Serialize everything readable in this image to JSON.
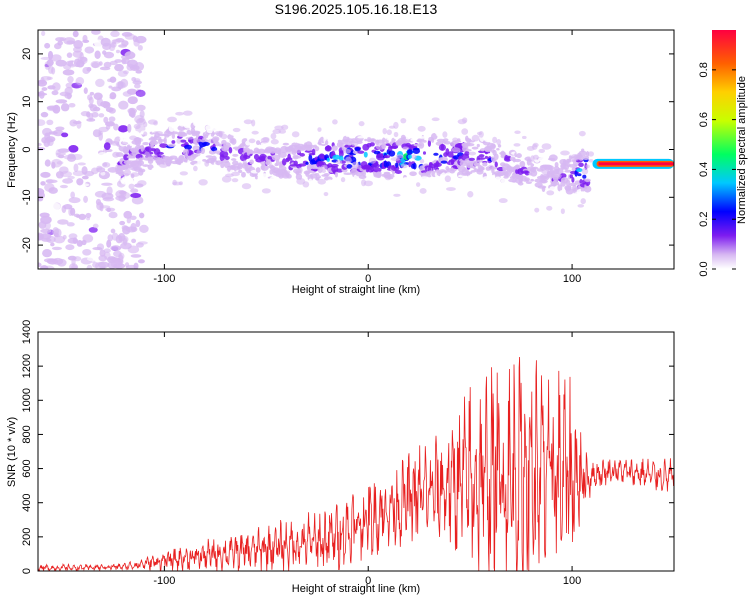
{
  "chart_data": [
    {
      "type": "heatmap",
      "title": "S196.2025.105.16.18.E13",
      "xlabel": "Height of straight line (km)",
      "ylabel": "Frequency (Hz)",
      "xlim": [
        -162,
        150
      ],
      "ylim": [
        -25,
        25
      ],
      "xticks": [
        -100,
        0,
        100
      ],
      "yticks": [
        -20,
        -10,
        0,
        10,
        20
      ],
      "grid": false,
      "colorbar": {
        "label": "Normalized spectral amplitude",
        "range": [
          0.0,
          0.96
        ],
        "ticks": [
          0.0,
          0.2,
          0.4,
          0.6,
          0.8
        ],
        "colors": [
          "#ffffff",
          "#d7b8f2",
          "#7d1cf0",
          "#0000ff",
          "#00c8ff",
          "#00ff60",
          "#c8ff00",
          "#ffd000",
          "#ff6000",
          "#ff0040"
        ]
      },
      "ridge": {
        "note_x": [
          -120,
          -100,
          -80,
          -60,
          -40,
          -20,
          0,
          20,
          40,
          60,
          80,
          100,
          115,
          150
        ],
        "freq": [
          -2.5,
          0.5,
          1.0,
          -2.0,
          -2.5,
          -2.0,
          -1.5,
          -2.0,
          -1.0,
          -2.0,
          -5.0,
          -5.5,
          -3.0,
          -3.0
        ],
        "amplitude": [
          0.2,
          0.25,
          0.25,
          0.2,
          0.2,
          0.35,
          0.4,
          0.45,
          0.3,
          0.25,
          0.15,
          0.2,
          0.9,
          0.9
        ]
      }
    },
    {
      "type": "line",
      "xlabel": "Height of straight line (km)",
      "ylabel": "SNR (10 * v/v)",
      "xlim": [
        -162,
        150
      ],
      "ylim": [
        0,
        1400
      ],
      "xticks": [
        -100,
        0,
        100
      ],
      "yticks": [
        0,
        200,
        400,
        600,
        800,
        1000,
        1200,
        1400
      ],
      "grid": false,
      "color": "#e82020",
      "envelope": {
        "x": [
          -162,
          -140,
          -120,
          -100,
          -80,
          -60,
          -40,
          -20,
          0,
          20,
          40,
          50,
          60,
          70,
          78,
          90,
          100,
          105,
          110,
          120,
          135,
          150
        ],
        "mean": [
          18,
          20,
          25,
          60,
          90,
          115,
          150,
          180,
          300,
          420,
          500,
          520,
          540,
          560,
          570,
          560,
          560,
          540,
          560,
          590,
          570,
          550
        ],
        "amp": [
          15,
          15,
          15,
          45,
          70,
          90,
          120,
          160,
          180,
          210,
          300,
          450,
          520,
          550,
          600,
          480,
          450,
          200,
          70,
          60,
          70,
          80
        ]
      }
    }
  ]
}
